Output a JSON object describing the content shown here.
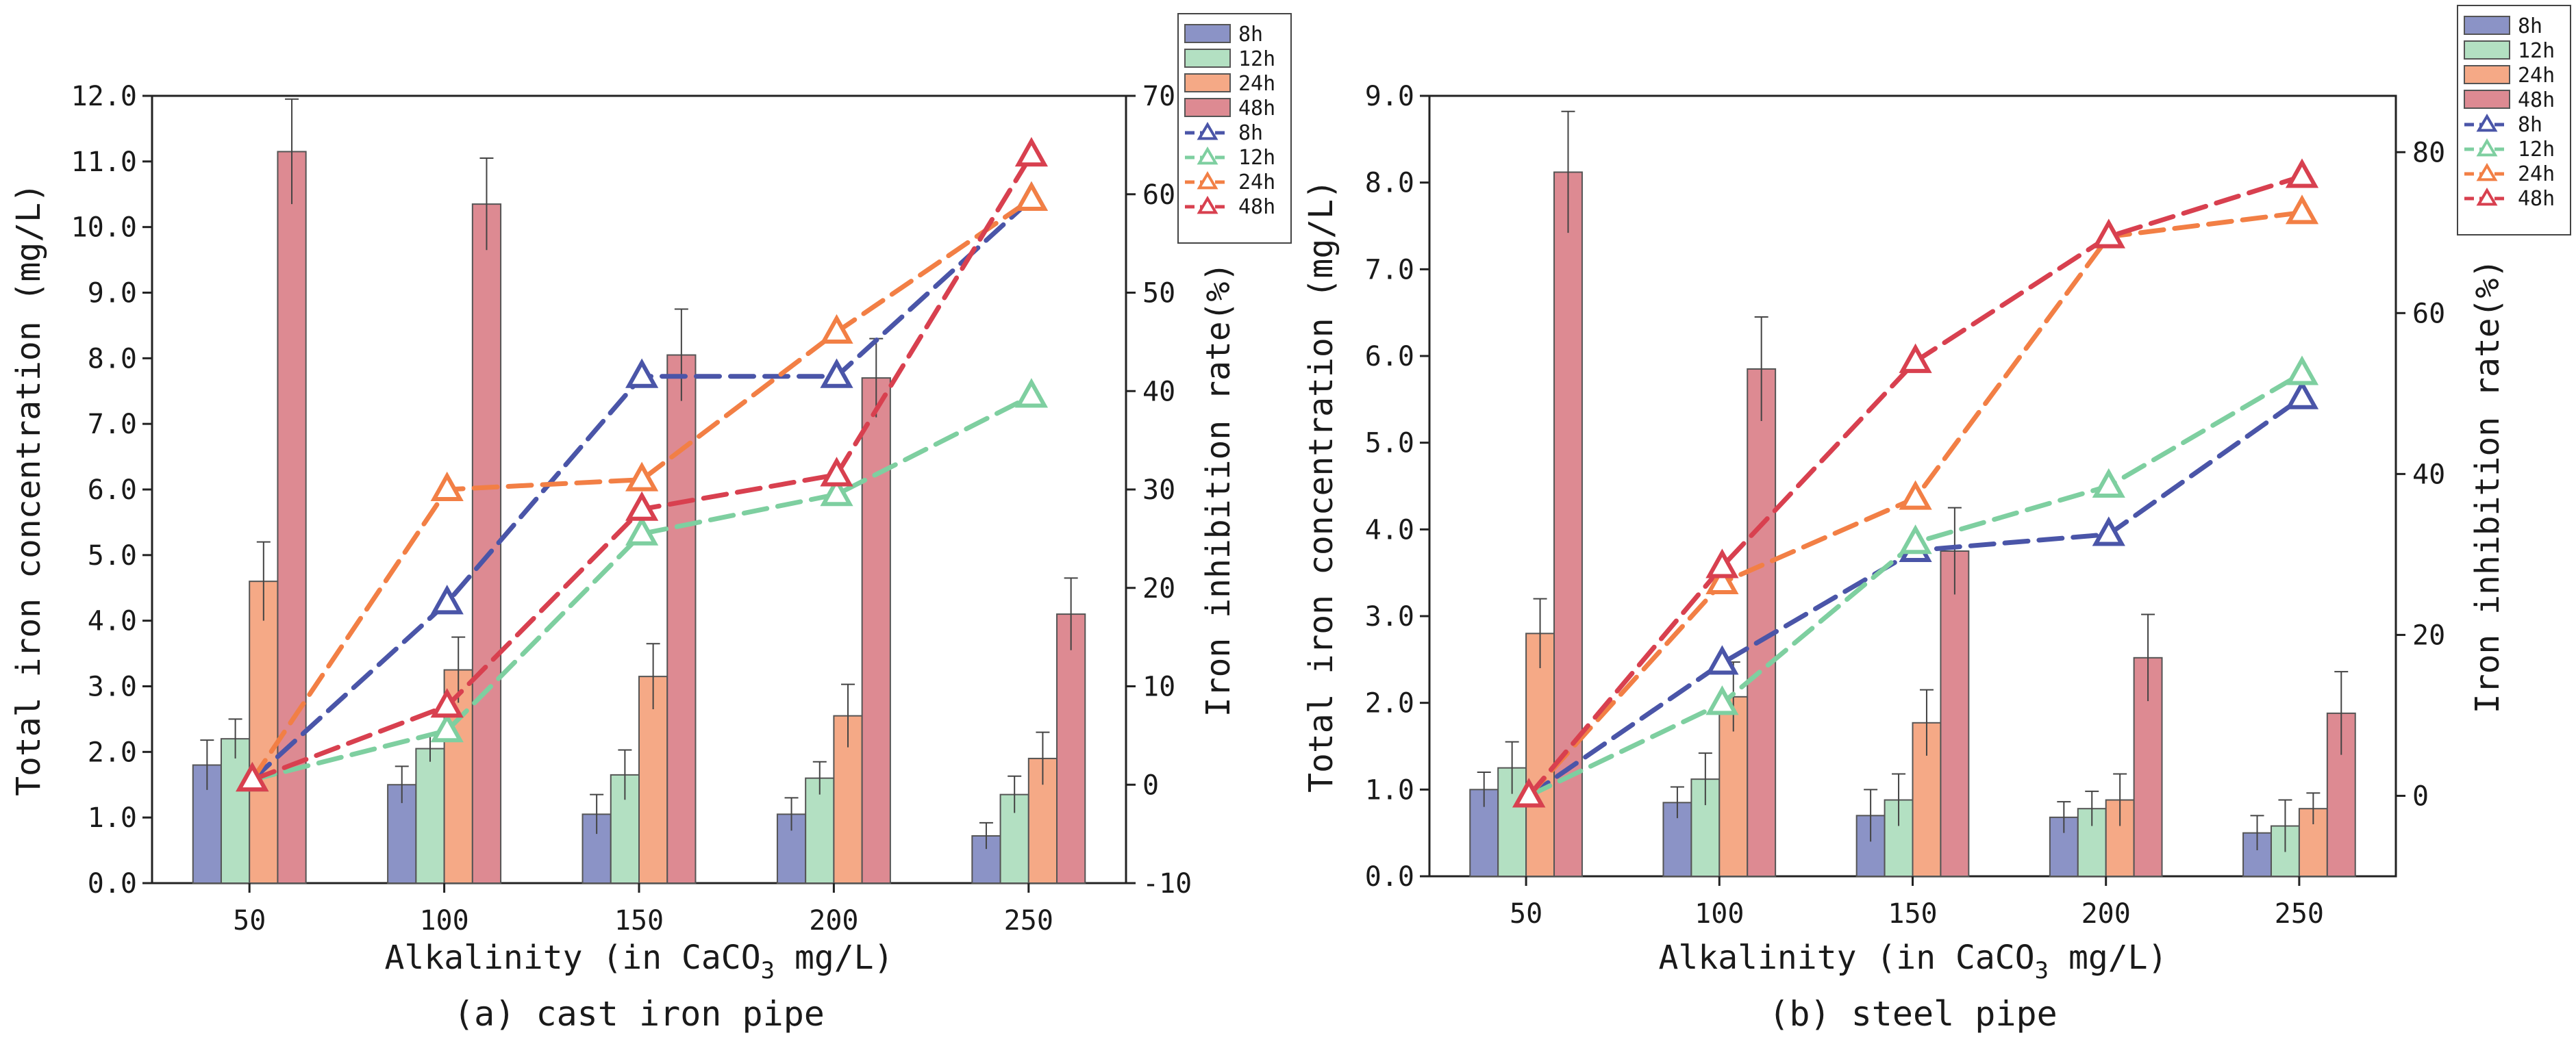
{
  "chart_data": [
    {
      "type": "bar+line",
      "caption": "(a) cast iron pipe",
      "xlabel_pre": "Alkalinity (in CaCO",
      "xlabel_sub": "3",
      "xlabel_post": " mg/L)",
      "ylabel": "Total iron concentration  (mg/L)",
      "y2label": "Iron inhibition rate(%)",
      "categories": [
        "50",
        "100",
        "150",
        "200",
        "250"
      ],
      "ylim": [
        0,
        12
      ],
      "yticks": [
        "0.0",
        "1.0",
        "2.0",
        "3.0",
        "4.0",
        "5.0",
        "6.0",
        "7.0",
        "8.0",
        "9.0",
        "10.0",
        "11.0",
        "12.0"
      ],
      "y2lim": [
        -10,
        70
      ],
      "y2ticks": [
        "-10",
        "0",
        "10",
        "20",
        "30",
        "40",
        "50",
        "60",
        "70"
      ],
      "bar_series": [
        {
          "name": "8h",
          "color": "#8b93c6",
          "values": [
            1.8,
            1.5,
            1.05,
            1.05,
            0.72
          ],
          "errors": [
            0.38,
            0.28,
            0.3,
            0.25,
            0.2
          ]
        },
        {
          "name": "12h",
          "color": "#b3e0c2",
          "values": [
            2.2,
            2.05,
            1.65,
            1.6,
            1.35
          ],
          "errors": [
            0.3,
            0.2,
            0.38,
            0.25,
            0.28
          ]
        },
        {
          "name": "24h",
          "color": "#f5a986",
          "values": [
            4.6,
            3.25,
            3.15,
            2.55,
            1.9
          ],
          "errors": [
            0.6,
            0.5,
            0.5,
            0.48,
            0.4
          ]
        },
        {
          "name": "48h",
          "color": "#dd8a92",
          "values": [
            11.15,
            10.35,
            8.05,
            7.7,
            4.1
          ],
          "errors": [
            0.8,
            0.7,
            0.7,
            0.6,
            0.55
          ]
        }
      ],
      "line_series": [
        {
          "name": "8h",
          "color": "#4a55a8",
          "values": [
            0.5,
            18.5,
            41.5,
            41.5,
            59.5
          ]
        },
        {
          "name": "12h",
          "color": "#7ecfa0",
          "values": [
            0.5,
            5.5,
            25.5,
            29.5,
            39.5
          ]
        },
        {
          "name": "24h",
          "color": "#f27f45",
          "values": [
            0.5,
            30.0,
            31.0,
            46.0,
            59.5
          ]
        },
        {
          "name": "48h",
          "color": "#d8404f",
          "values": [
            0.5,
            8.0,
            28.0,
            31.5,
            64.0
          ]
        }
      ]
    },
    {
      "type": "bar+line",
      "caption": "(b) steel pipe",
      "xlabel_pre": "Alkalinity (in CaCO",
      "xlabel_sub": "3",
      "xlabel_post": " mg/L)",
      "ylabel": "Total iron concentration  (mg/L)",
      "y2label": "Iron inhibition rate(%)",
      "categories": [
        "50",
        "100",
        "150",
        "200",
        "250"
      ],
      "ylim": [
        0,
        9.0
      ],
      "yticks": [
        "0.0",
        "1.0",
        "2.0",
        "3.0",
        "4.0",
        "5.0",
        "6.0",
        "7.0",
        "8.0",
        "9.0"
      ],
      "y2lim": [
        -10,
        87
      ],
      "y2ticks": [
        "0",
        "20",
        "40",
        "60",
        "80"
      ],
      "bar_series": [
        {
          "name": "8h",
          "color": "#8b93c6",
          "values": [
            1.0,
            0.85,
            0.7,
            0.68,
            0.5
          ],
          "errors": [
            0.2,
            0.18,
            0.3,
            0.18,
            0.2
          ]
        },
        {
          "name": "12h",
          "color": "#b3e0c2",
          "values": [
            1.25,
            1.12,
            0.88,
            0.78,
            0.58
          ],
          "errors": [
            0.3,
            0.3,
            0.3,
            0.2,
            0.3
          ]
        },
        {
          "name": "24h",
          "color": "#f5a986",
          "values": [
            2.8,
            2.07,
            1.77,
            0.88,
            0.78
          ],
          "errors": [
            0.4,
            0.4,
            0.38,
            0.3,
            0.18
          ]
        },
        {
          "name": "48h",
          "color": "#dd8a92",
          "values": [
            8.12,
            5.85,
            3.75,
            2.52,
            1.88
          ],
          "errors": [
            0.7,
            0.6,
            0.5,
            0.5,
            0.48
          ]
        }
      ],
      "line_series": [
        {
          "name": "8h",
          "color": "#4a55a8",
          "values": [
            0,
            16.5,
            30.5,
            32.5,
            49.5
          ]
        },
        {
          "name": "12h",
          "color": "#7ecfa0",
          "values": [
            0,
            11.5,
            31.5,
            38.5,
            52.5
          ]
        },
        {
          "name": "24h",
          "color": "#f27f45",
          "values": [
            0,
            26.5,
            37.0,
            69.5,
            72.5
          ]
        },
        {
          "name": "48h",
          "color": "#d8404f",
          "values": [
            0,
            28.5,
            54.0,
            69.5,
            77.0
          ]
        }
      ]
    }
  ]
}
